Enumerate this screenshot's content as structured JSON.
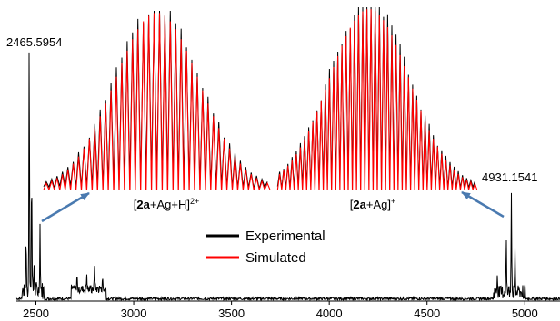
{
  "chart_data": {
    "type": "line",
    "title": "",
    "xlabel": "",
    "ylabel": "",
    "xlim": [
      2400,
      5180
    ],
    "x_ticks": [
      "2500",
      "3000",
      "3500",
      "4000",
      "4500",
      "5000"
    ],
    "x_tick_values": [
      2500,
      3000,
      3500,
      4000,
      4500,
      5000
    ],
    "grid": false,
    "legend_position": "center",
    "peak_labels": {
      "left": "2465.5954",
      "right": "4931.1541"
    },
    "spectrum": {
      "name": "",
      "color": "#000000",
      "peaks": [
        {
          "mz": 2465.6,
          "intensity": 0.93
        },
        {
          "mz": 2450.0,
          "intensity": 0.2
        },
        {
          "mz": 2478.0,
          "intensity": 0.46
        },
        {
          "mz": 2521.0,
          "intensity": 0.24
        },
        {
          "mz": 2490.0,
          "intensity": 0.1
        },
        {
          "mz": 2710.0,
          "intensity": 0.05
        },
        {
          "mz": 2760.0,
          "intensity": 0.06
        },
        {
          "mz": 2800.0,
          "intensity": 0.09
        },
        {
          "mz": 2840.0,
          "intensity": 0.04
        },
        {
          "mz": 4860.0,
          "intensity": 0.07
        },
        {
          "mz": 4905.0,
          "intensity": 0.2
        },
        {
          "mz": 4931.2,
          "intensity": 0.38
        },
        {
          "mz": 4950.0,
          "intensity": 0.16
        },
        {
          "mz": 5000.0,
          "intensity": 0.06
        }
      ]
    },
    "insets": [
      {
        "label_prefix": "[",
        "label_bold": "2a",
        "label_suffix": "+Ag+H]",
        "label_sup": "2+",
        "envelope_center": 0.5,
        "envelope_width": 0.26,
        "n_peaks": 42
      },
      {
        "label_prefix": "[",
        "label_bold": "2a",
        "label_suffix": "+Ag]",
        "label_sup": "+",
        "envelope_center": 0.46,
        "envelope_width": 0.28,
        "n_peaks": 48
      }
    ],
    "legend": [
      {
        "name": "Experimental",
        "color": "#000000"
      },
      {
        "name": "Simulated",
        "color": "#ff0000"
      }
    ]
  }
}
